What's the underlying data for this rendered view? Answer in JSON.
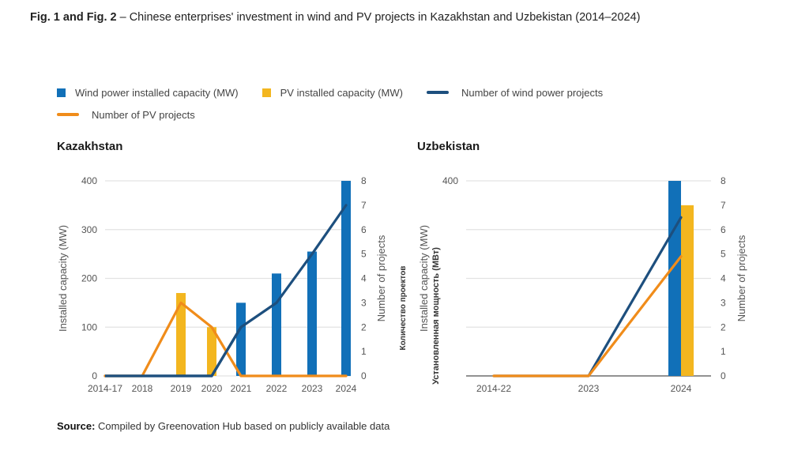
{
  "figure": {
    "title_bold": "Fig. 1 and Fig. 2",
    "title_rest": " – Chinese enterprises' investment in wind and PV projects in Kazakhstan and Uzbekistan (2014–2024)",
    "source_bold": "Source:",
    "source_rest": " Compiled by Greenovation Hub based on publicly available data"
  },
  "legend": [
    {
      "label": "Wind power installed capacity (MW)",
      "kind": "bar",
      "color": "#1170b8"
    },
    {
      "label": "PV installed capacity (MW)",
      "kind": "bar",
      "color": "#f3b61f"
    },
    {
      "label": "Number of wind power projects",
      "kind": "line",
      "color": "#1d4f7e"
    },
    {
      "label": "Number of PV projects",
      "kind": "line",
      "color": "#f08c1a"
    }
  ],
  "colors": {
    "wind_bar": "#1170b8",
    "pv_bar": "#f3b61f",
    "wind_line": "#1d4f7e",
    "pv_line": "#f08c1a",
    "grid": "#e3e3e3",
    "axis_text": "#555555"
  },
  "chart_data": [
    {
      "type": "bar",
      "title": "Kazakhstan",
      "categories": [
        "2014-17",
        "2018",
        "2019",
        "2020",
        "2021",
        "2022",
        "2023",
        "2024"
      ],
      "ylabel": "Installed capacity (MW)",
      "y2label": "Number of projects",
      "ylim": [
        0,
        400
      ],
      "yticks": [
        0,
        100,
        200,
        300,
        400
      ],
      "y2lim": [
        0,
        8
      ],
      "y2ticks": [
        0,
        1,
        2,
        3,
        4,
        5,
        6,
        7,
        8
      ],
      "grid": true,
      "series": [
        {
          "name": "Wind power installed capacity (MW)",
          "kind": "bar",
          "axis": "left",
          "values": [
            0,
            0,
            0,
            0,
            150,
            210,
            255,
            400
          ]
        },
        {
          "name": "PV installed capacity (MW)",
          "kind": "bar",
          "axis": "left",
          "values": [
            0,
            0,
            170,
            100,
            0,
            0,
            0,
            0
          ]
        },
        {
          "name": "Number of wind power projects",
          "kind": "line",
          "axis": "right",
          "values": [
            0,
            0,
            0,
            0,
            2,
            3,
            5,
            7
          ]
        },
        {
          "name": "Number of PV projects",
          "kind": "line",
          "axis": "right",
          "values": [
            0,
            0,
            3,
            2,
            0,
            0,
            0,
            0
          ]
        }
      ]
    },
    {
      "type": "bar",
      "title": "Uzbekistan",
      "categories": [
        "2014-22",
        "2023",
        "2024"
      ],
      "ylabel": "Installed capacity (MW)",
      "ylabel_ru": "Установленная мощность (МВт)",
      "ylabel_ru2": "Количество проектов",
      "y2label": "Number of projects",
      "ylim": [
        0,
        400
      ],
      "yticks": [
        400
      ],
      "y2lim": [
        0,
        8
      ],
      "y2ticks": [
        0,
        1,
        2,
        3,
        4,
        5,
        6,
        7,
        8
      ],
      "grid": true,
      "series": [
        {
          "name": "Wind power installed capacity (MW)",
          "kind": "bar",
          "axis": "left",
          "values": [
            0,
            0,
            400
          ]
        },
        {
          "name": "PV installed capacity (MW)",
          "kind": "bar",
          "axis": "left",
          "values": [
            0,
            0,
            350
          ]
        },
        {
          "name": "Number of wind power projects",
          "kind": "line",
          "axis": "right",
          "values": [
            0,
            0,
            6.5
          ]
        },
        {
          "name": "Number of PV projects",
          "kind": "line",
          "axis": "right",
          "values": [
            0,
            0,
            4.9
          ]
        }
      ]
    }
  ]
}
